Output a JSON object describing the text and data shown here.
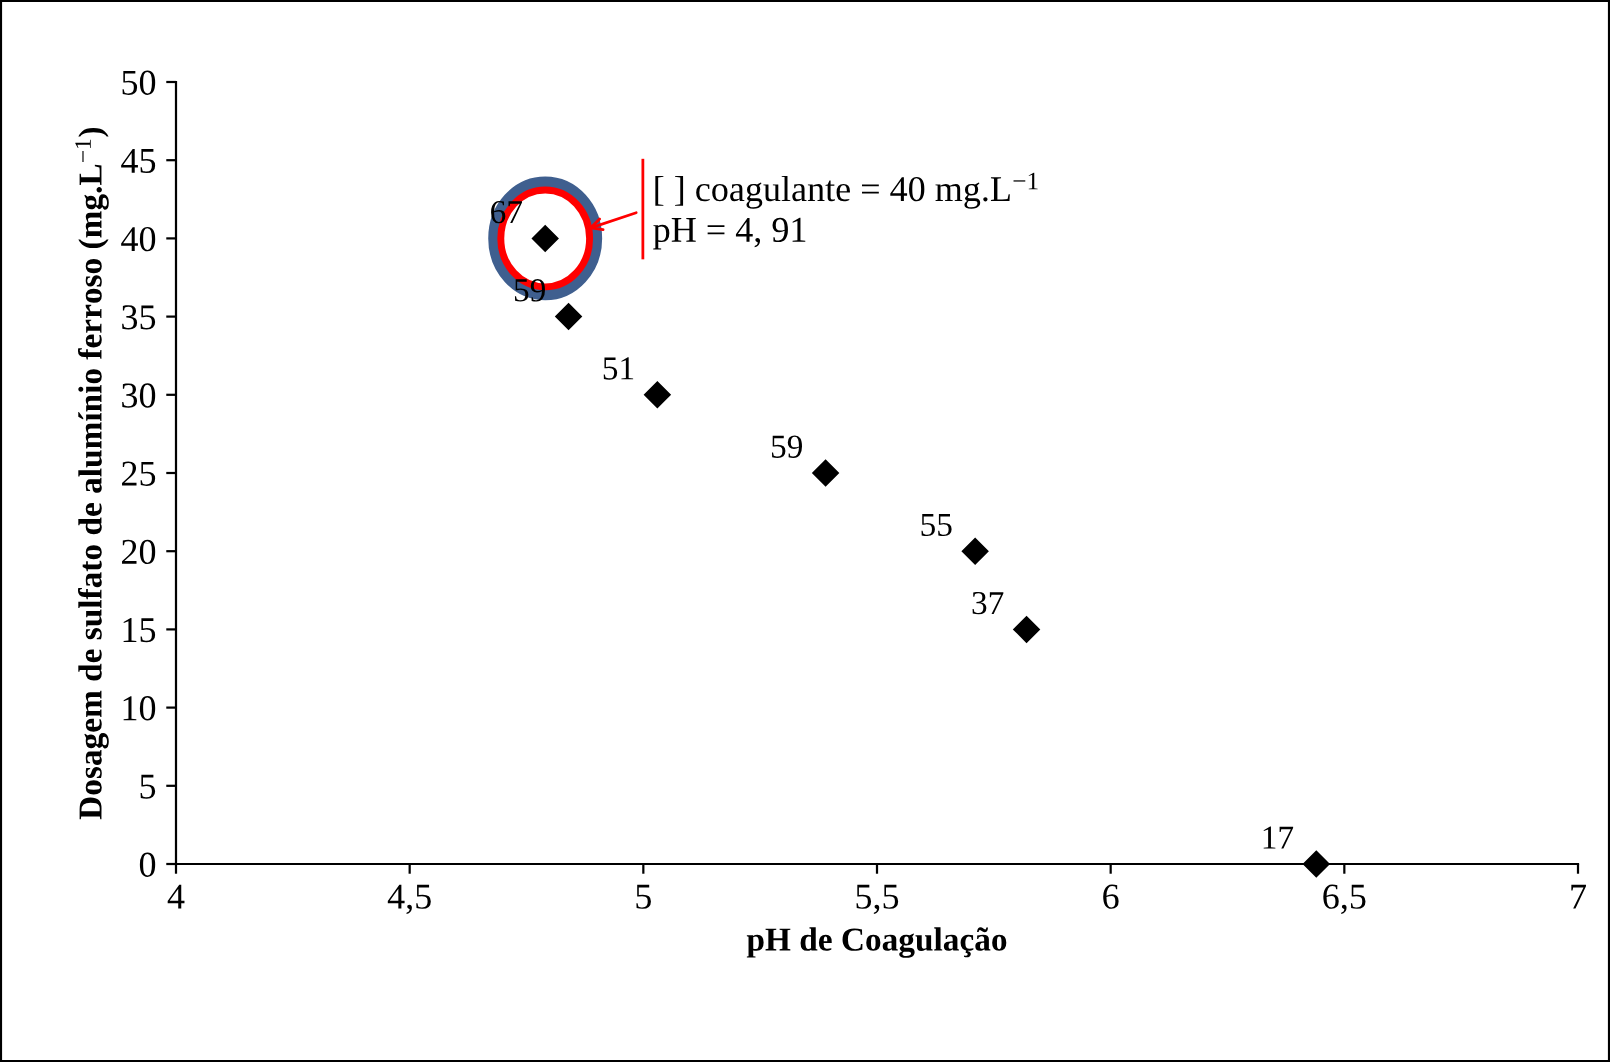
{
  "chart_data": {
    "type": "scatter",
    "xlabel": "pH de Coagulação",
    "ylabel": "Dosagem de sulfato de alumínio ferroso (mg.L$^{−1}$)",
    "x": [
      4.79,
      4.84,
      5.03,
      5.39,
      5.71,
      5.82,
      6.44
    ],
    "values": [
      40,
      35,
      30,
      25,
      20,
      15,
      0
    ],
    "color": "#000000",
    "marker": "diamond",
    "xlim": [
      4,
      7
    ],
    "ylim": [
      0,
      50
    ],
    "xticks": [
      4,
      {
        "value": 4.5,
        "label": "4,5"
      },
      5,
      {
        "value": 5.5,
        "label": "5,5"
      },
      6,
      {
        "value": 6.5,
        "label": "6,5"
      },
      7
    ],
    "yticks": [
      0,
      5,
      10,
      15,
      20,
      25,
      30,
      35,
      40,
      45,
      50
    ],
    "grid": false,
    "annotations": [
      "[ ] coagulante = 40 mg.L$^{−1}$\npH = 4, 91",
      {
        "text": "67",
        "x": 4.79,
        "y": 40
      },
      {
        "text": "59",
        "x": 4.84,
        "y": 35
      },
      {
        "text": "51",
        "x": 5.03,
        "y": 30
      },
      {
        "text": "59",
        "x": 5.39,
        "y": 25
      },
      {
        "text": "55",
        "x": 5.71,
        "y": 20
      },
      {
        "text": "37",
        "x": 5.82,
        "y": 15
      },
      {
        "text": "17",
        "x": 6.44,
        "y": 0
      }
    ]
  }
}
